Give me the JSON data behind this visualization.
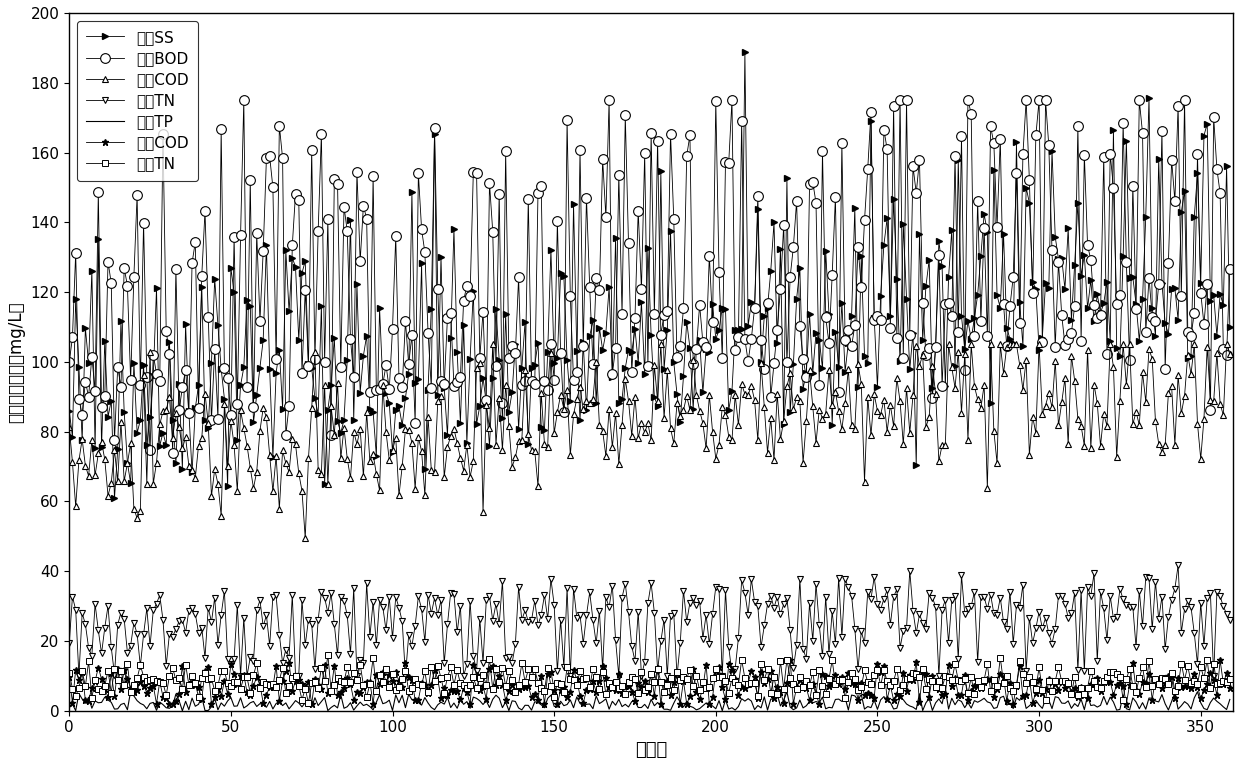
{
  "title": "",
  "xlabel": "样本点",
  "ylabel": "变量値（单位：mg/L）",
  "xlim": [
    0,
    360
  ],
  "ylim": [
    0,
    200
  ],
  "yticks": [
    0,
    20,
    40,
    60,
    80,
    100,
    120,
    140,
    160,
    180,
    200
  ],
  "xticks": [
    0,
    50,
    100,
    150,
    200,
    250,
    300,
    350
  ],
  "n_points": 360,
  "legend_labels": [
    "进水SS",
    "进水BOD",
    "进水COD",
    "进水TN",
    "进水TP",
    "出水COD",
    "出水TN"
  ],
  "background_color": "#ffffff",
  "seed": 42
}
